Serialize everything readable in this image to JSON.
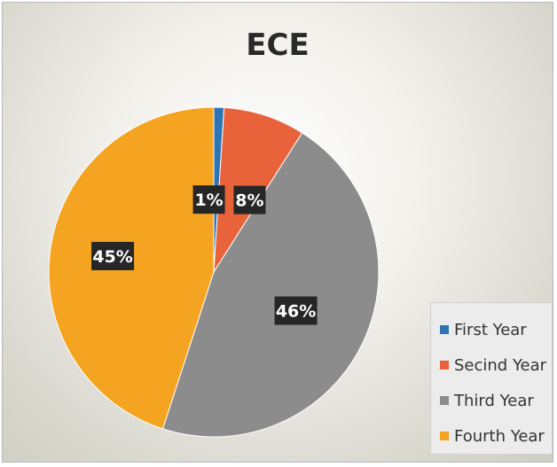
{
  "chart_data": {
    "type": "pie",
    "title": "ECE",
    "slices": [
      {
        "label": "First Year",
        "value": 1,
        "data_label": "1%",
        "color": "#2e75b6"
      },
      {
        "label": "Secind Year",
        "value": 8,
        "data_label": "8%",
        "color": "#e8633a"
      },
      {
        "label": "Third Year",
        "value": 46,
        "data_label": "46%",
        "color": "#8c8c8c"
      },
      {
        "label": "Fourth Year",
        "value": 45,
        "data_label": "45%",
        "color": "#f5a421"
      }
    ],
    "legend": "bottom-right",
    "data_label_style": "white text on dark box"
  }
}
